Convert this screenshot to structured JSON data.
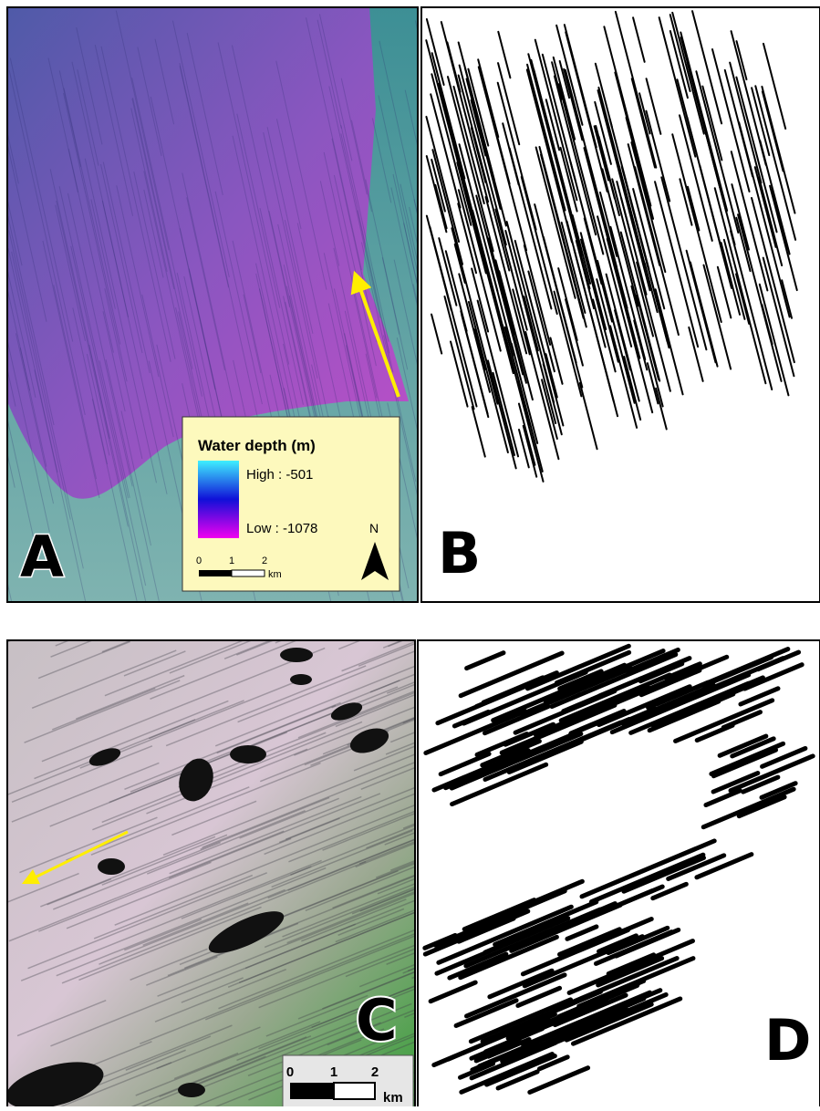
{
  "panels": [
    {
      "label": "A"
    },
    {
      "label": "B"
    },
    {
      "label": "C"
    },
    {
      "label": "D"
    }
  ],
  "legend": {
    "title": "Water depth (m)",
    "high": "High : -501",
    "low": "Low : -1078",
    "north": "N",
    "scale": {
      "ticks": [
        "0",
        "1",
        "2"
      ],
      "unit": "km"
    }
  },
  "scale_c": {
    "ticks": [
      "0",
      "1",
      "2"
    ],
    "unit": "km"
  }
}
